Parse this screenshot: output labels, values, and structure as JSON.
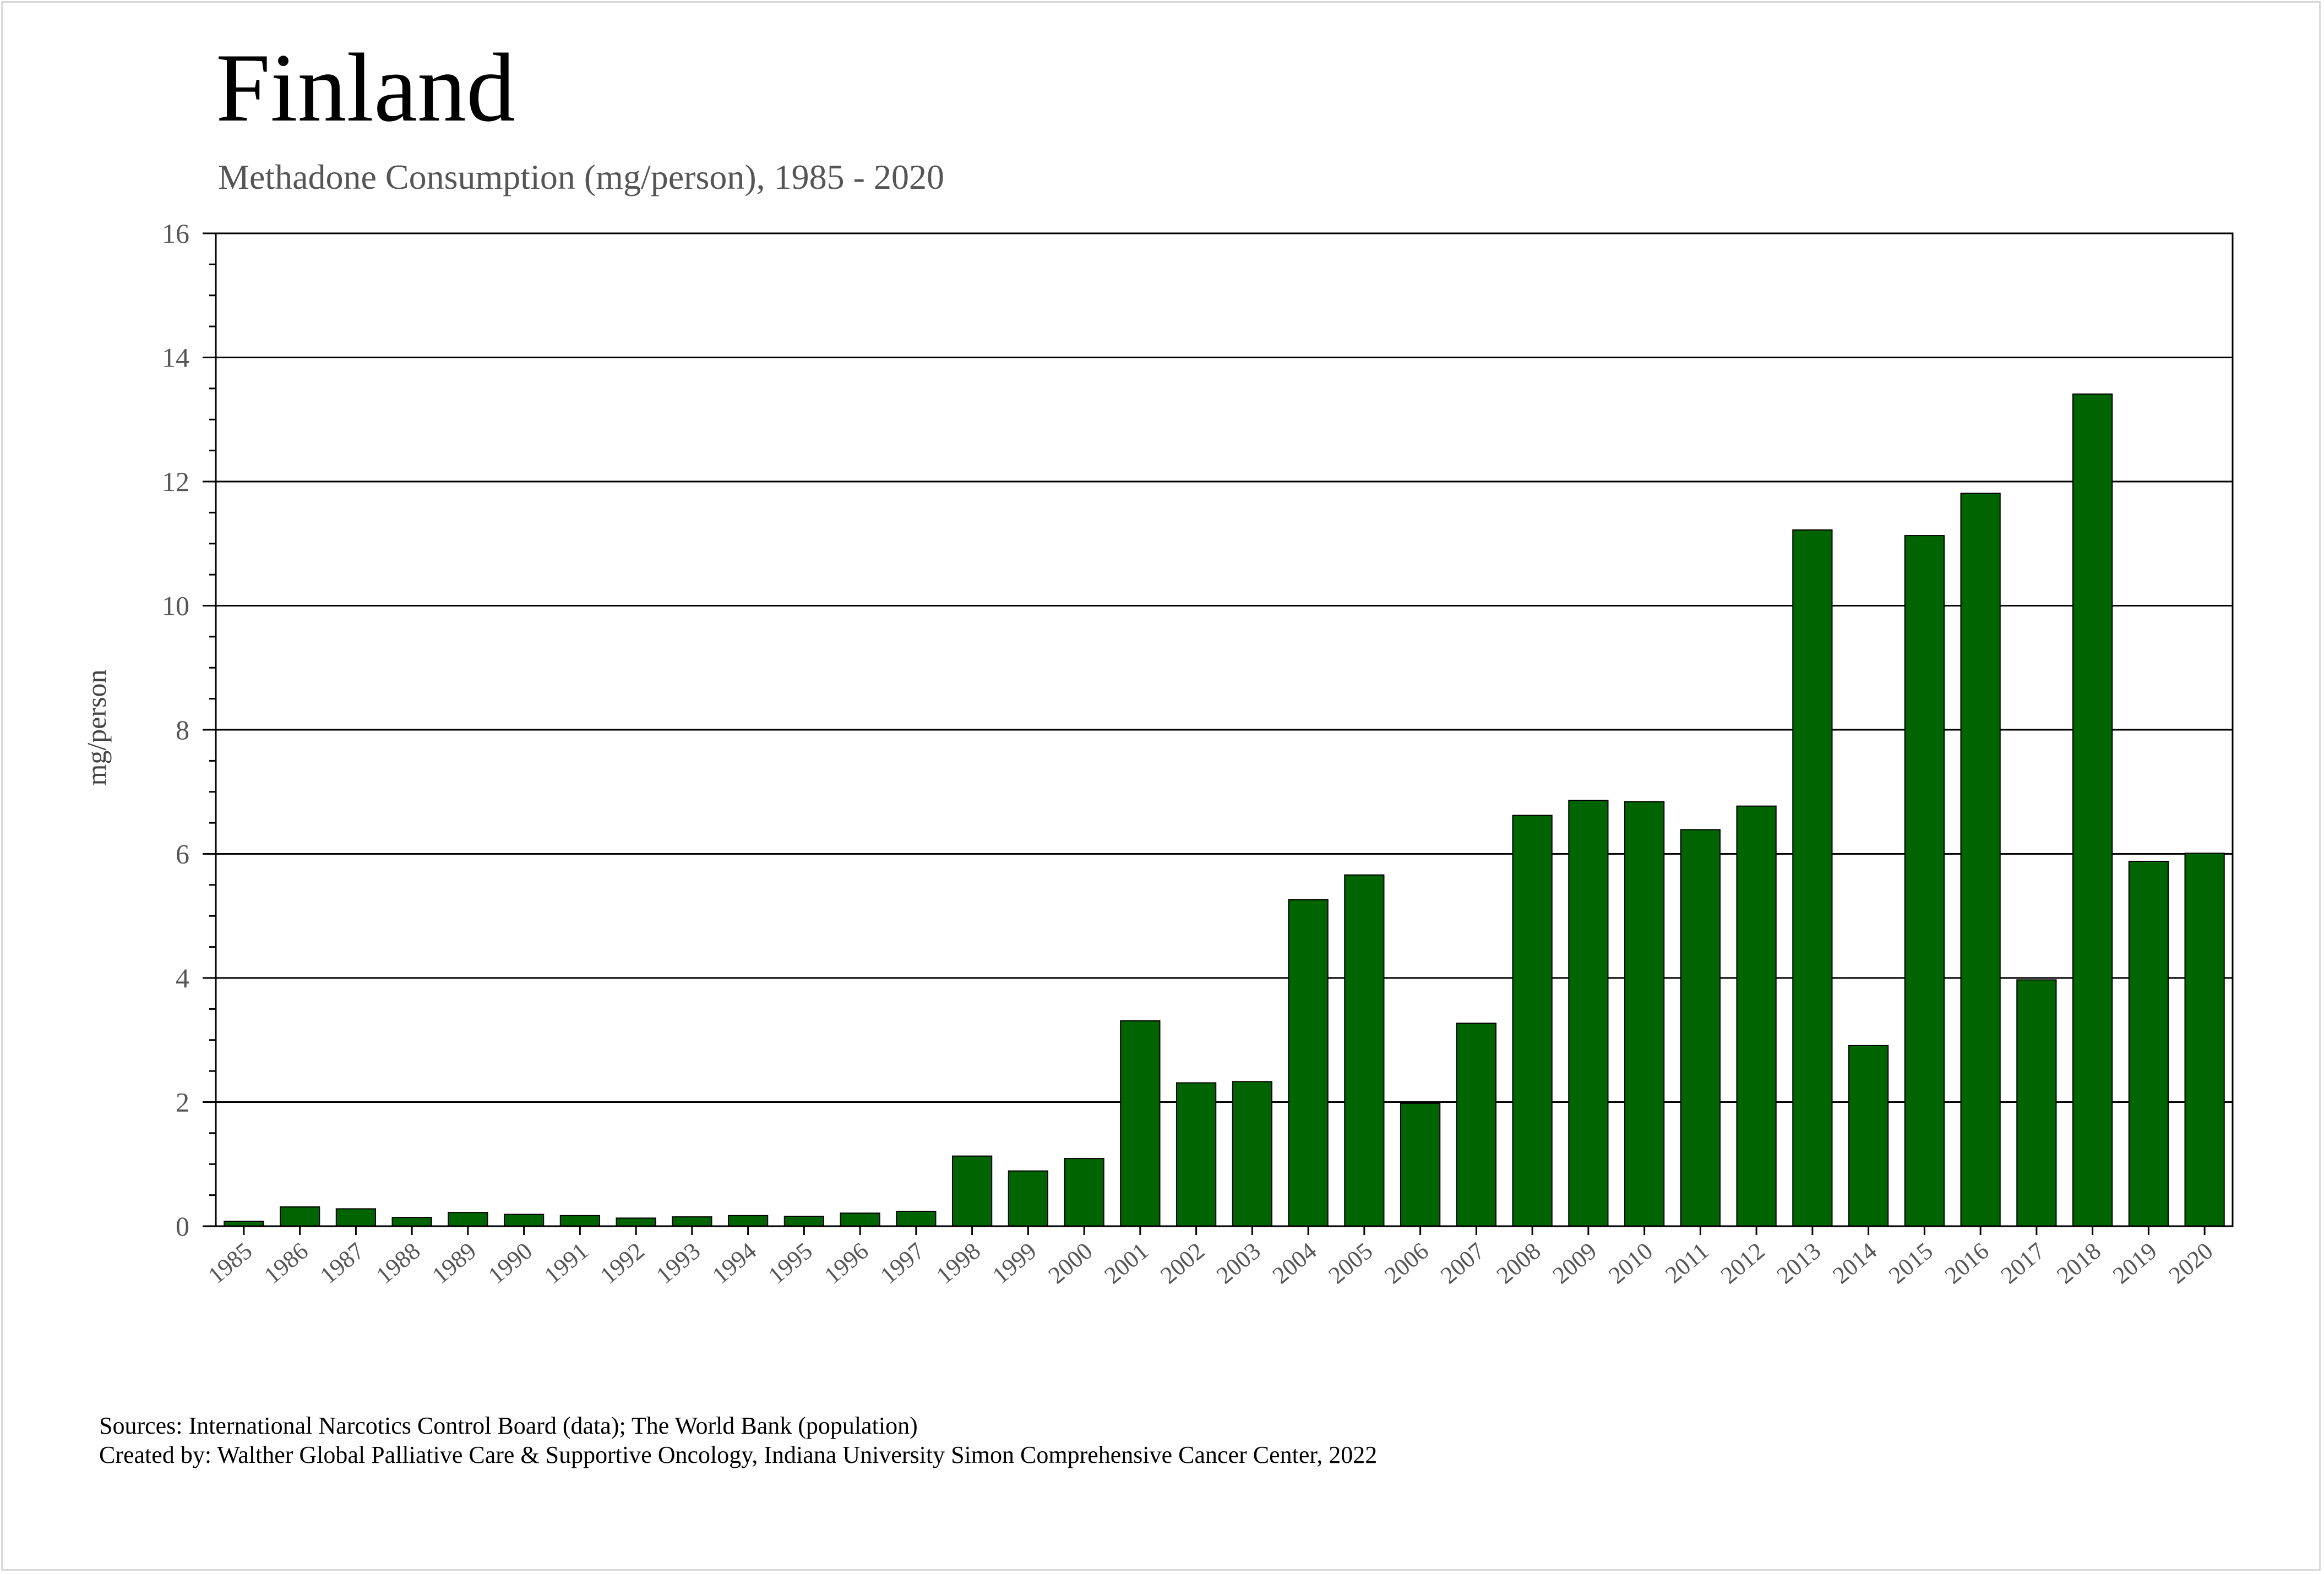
{
  "chart_data": {
    "type": "bar",
    "title": "Finland",
    "subtitle": "Methadone Consumption (mg/person), 1985 - 2020",
    "xlabel": "",
    "ylabel": "mg/person",
    "ylim": [
      0,
      16
    ],
    "yticks": [
      "0",
      "2",
      "4",
      "6",
      "8",
      "10",
      "12",
      "14",
      "16"
    ],
    "grid": true,
    "bar_color": "#006400",
    "categories": [
      "1985",
      "1986",
      "1987",
      "1988",
      "1989",
      "1990",
      "1991",
      "1992",
      "1993",
      "1994",
      "1995",
      "1996",
      "1997",
      "1998",
      "1999",
      "2000",
      "2001",
      "2002",
      "2003",
      "2004",
      "2005",
      "2006",
      "2007",
      "2008",
      "2009",
      "2010",
      "2011",
      "2012",
      "2013",
      "2014",
      "2015",
      "2016",
      "2017",
      "2018",
      "2019",
      "2020"
    ],
    "values": [
      0.08,
      0.31,
      0.28,
      0.14,
      0.22,
      0.19,
      0.17,
      0.13,
      0.15,
      0.17,
      0.16,
      0.21,
      0.24,
      1.13,
      0.89,
      1.09,
      3.31,
      2.31,
      2.33,
      5.26,
      5.66,
      1.98,
      3.27,
      6.62,
      6.86,
      6.84,
      6.39,
      6.77,
      11.22,
      2.91,
      11.13,
      11.81,
      3.97,
      13.41,
      5.88,
      6.01
    ]
  },
  "footer": {
    "sources": "Sources: International Narcotics Control Board (data); The World Bank (population)",
    "created_by": "Created by: Walther Global Palliative Care & Supportive Oncology, Indiana University Simon Comprehensive Cancer Center, 2022"
  }
}
